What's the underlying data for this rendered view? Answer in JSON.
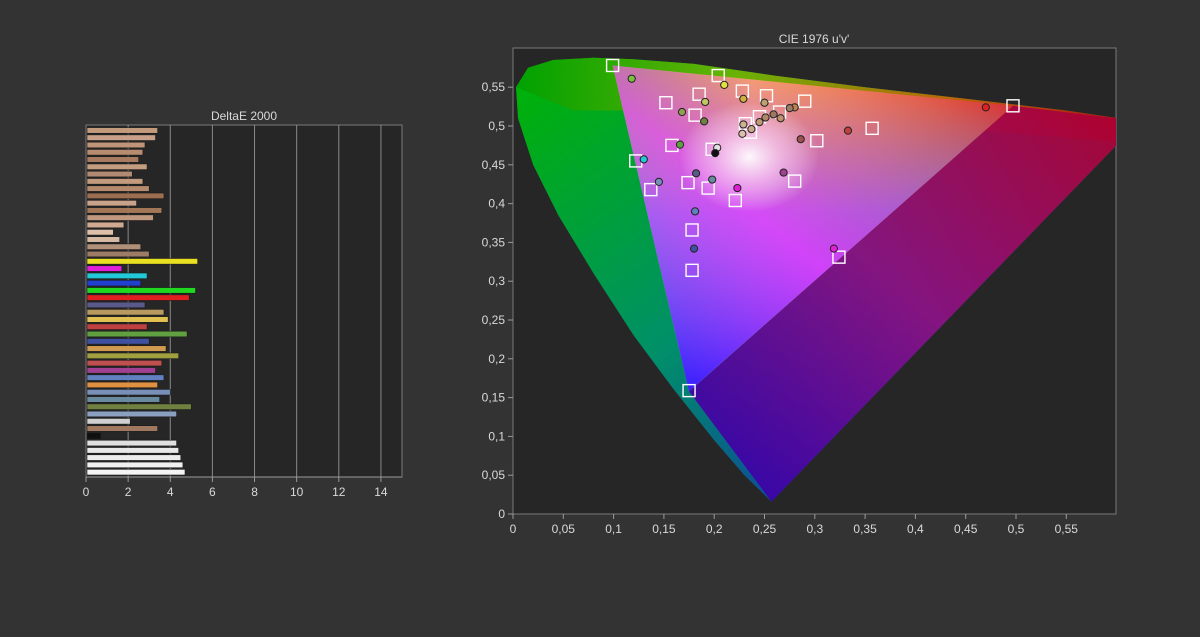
{
  "chart_data": [
    {
      "type": "bar",
      "orientation": "horizontal",
      "title": "DeltaE 2000",
      "xlim": [
        0,
        15
      ],
      "xticks": [
        "0",
        "2",
        "4",
        "6",
        "8",
        "10",
        "12",
        "14"
      ],
      "grid": true,
      "bars": [
        {
          "value": 3.4,
          "color": "#c49a7c"
        },
        {
          "value": 3.3,
          "color": "#c8a08a"
        },
        {
          "value": 2.8,
          "color": "#c09478"
        },
        {
          "value": 2.7,
          "color": "#b88c70"
        },
        {
          "value": 2.5,
          "color": "#a87a60"
        },
        {
          "value": 2.9,
          "color": "#c49c80"
        },
        {
          "value": 2.2,
          "color": "#b08a72"
        },
        {
          "value": 2.7,
          "color": "#c29a7e"
        },
        {
          "value": 3.0,
          "color": "#b48a6c"
        },
        {
          "value": 3.7,
          "color": "#9c6e50"
        },
        {
          "value": 2.4,
          "color": "#c8a28a"
        },
        {
          "value": 3.6,
          "color": "#a47658"
        },
        {
          "value": 3.2,
          "color": "#c09880"
        },
        {
          "value": 1.8,
          "color": "#d0aa90"
        },
        {
          "value": 1.3,
          "color": "#dcc0aa"
        },
        {
          "value": 1.6,
          "color": "#d4b8a2"
        },
        {
          "value": 2.6,
          "color": "#b09078"
        },
        {
          "value": 3.0,
          "color": "#9c7c66"
        },
        {
          "value": 5.3,
          "color": "#e8e020"
        },
        {
          "value": 1.7,
          "color": "#e020d8"
        },
        {
          "value": 2.9,
          "color": "#20c8d8"
        },
        {
          "value": 2.6,
          "color": "#2040d0"
        },
        {
          "value": 5.2,
          "color": "#20d820"
        },
        {
          "value": 4.9,
          "color": "#e02020"
        },
        {
          "value": 2.8,
          "color": "#5a5a8a"
        },
        {
          "value": 3.7,
          "color": "#b89a60"
        },
        {
          "value": 3.9,
          "color": "#e0c050"
        },
        {
          "value": 2.9,
          "color": "#c04040"
        },
        {
          "value": 4.8,
          "color": "#60a040"
        },
        {
          "value": 3.0,
          "color": "#4050a0"
        },
        {
          "value": 3.8,
          "color": "#d09a50"
        },
        {
          "value": 4.4,
          "color": "#a0a040"
        },
        {
          "value": 3.6,
          "color": "#c05050"
        },
        {
          "value": 3.3,
          "color": "#a04090"
        },
        {
          "value": 3.7,
          "color": "#6080c0"
        },
        {
          "value": 3.4,
          "color": "#e09040"
        },
        {
          "value": 4.0,
          "color": "#7890b8"
        },
        {
          "value": 3.5,
          "color": "#6a8aa0"
        },
        {
          "value": 5.0,
          "color": "#708040"
        },
        {
          "value": 4.3,
          "color": "#8aa0c0"
        },
        {
          "value": 2.1,
          "color": "#d0d0d0"
        },
        {
          "value": 3.4,
          "color": "#a07860"
        },
        {
          "value": 0.7,
          "color": "#101010"
        },
        {
          "value": 4.3,
          "color": "#e0e0e0"
        },
        {
          "value": 4.4,
          "color": "#e8e8e8"
        },
        {
          "value": 4.5,
          "color": "#ececec"
        },
        {
          "value": 4.6,
          "color": "#f0f0f0"
        },
        {
          "value": 4.7,
          "color": "#f4f4f4"
        }
      ]
    },
    {
      "type": "scatter",
      "title": "CIE 1976 u'v'",
      "xlim": [
        0,
        0.6
      ],
      "ylim": [
        0,
        0.6
      ],
      "xticks": [
        "0",
        "0,05",
        "0,1",
        "0,15",
        "0,2",
        "0,25",
        "0,3",
        "0,35",
        "0,4",
        "0,45",
        "0,5",
        "0,55"
      ],
      "yticks": [
        "0",
        "0,05",
        "0,1",
        "0,15",
        "0,2",
        "0,25",
        "0,3",
        "0,35",
        "0,4",
        "0,45",
        "0,5",
        "0,55"
      ],
      "gamut_primaries": [
        [
          0.175,
          0.158
        ],
        [
          0.099,
          0.578
        ],
        [
          0.497,
          0.526
        ]
      ],
      "white_point": [
        0.198,
        0.468
      ],
      "targets": [
        [
          0.099,
          0.578
        ],
        [
          0.204,
          0.565
        ],
        [
          0.152,
          0.53
        ],
        [
          0.185,
          0.541
        ],
        [
          0.228,
          0.545
        ],
        [
          0.252,
          0.539
        ],
        [
          0.29,
          0.532
        ],
        [
          0.181,
          0.514
        ],
        [
          0.265,
          0.518
        ],
        [
          0.245,
          0.512
        ],
        [
          0.231,
          0.503
        ],
        [
          0.236,
          0.492
        ],
        [
          0.357,
          0.497
        ],
        [
          0.302,
          0.481
        ],
        [
          0.158,
          0.475
        ],
        [
          0.122,
          0.455
        ],
        [
          0.198,
          0.47
        ],
        [
          0.174,
          0.427
        ],
        [
          0.194,
          0.42
        ],
        [
          0.28,
          0.429
        ],
        [
          0.137,
          0.418
        ],
        [
          0.221,
          0.404
        ],
        [
          0.178,
          0.366
        ],
        [
          0.324,
          0.331
        ],
        [
          0.178,
          0.314
        ],
        [
          0.175,
          0.159
        ],
        [
          0.497,
          0.526
        ]
      ],
      "measured": [
        {
          "u": 0.118,
          "v": 0.561,
          "c": "#7cc040"
        },
        {
          "u": 0.21,
          "v": 0.553,
          "c": "#e0e040"
        },
        {
          "u": 0.191,
          "v": 0.531,
          "c": "#c0c860"
        },
        {
          "u": 0.229,
          "v": 0.535,
          "c": "#d0b040"
        },
        {
          "u": 0.168,
          "v": 0.518,
          "c": "#90a050"
        },
        {
          "u": 0.25,
          "v": 0.53,
          "c": "#c0a070"
        },
        {
          "u": 0.28,
          "v": 0.524,
          "c": "#c08050"
        },
        {
          "u": 0.19,
          "v": 0.506,
          "c": "#708040"
        },
        {
          "u": 0.229,
          "v": 0.502,
          "c": "#d0b090"
        },
        {
          "u": 0.237,
          "v": 0.496,
          "c": "#c8a888"
        },
        {
          "u": 0.245,
          "v": 0.505,
          "c": "#c09878"
        },
        {
          "u": 0.251,
          "v": 0.511,
          "c": "#b08868"
        },
        {
          "u": 0.259,
          "v": 0.515,
          "c": "#a07860"
        },
        {
          "u": 0.266,
          "v": 0.51,
          "c": "#c09070"
        },
        {
          "u": 0.275,
          "v": 0.523,
          "c": "#9c7c66"
        },
        {
          "u": 0.228,
          "v": 0.49,
          "c": "#dcc0aa"
        },
        {
          "u": 0.333,
          "v": 0.494,
          "c": "#c04040"
        },
        {
          "u": 0.286,
          "v": 0.483,
          "c": "#a05050"
        },
        {
          "u": 0.166,
          "v": 0.476,
          "c": "#60a040"
        },
        {
          "u": 0.203,
          "v": 0.472,
          "c": "#e0e0e0"
        },
        {
          "u": 0.201,
          "v": 0.465,
          "c": "#101010"
        },
        {
          "u": 0.13,
          "v": 0.457,
          "c": "#20c8d8"
        },
        {
          "u": 0.182,
          "v": 0.439,
          "c": "#5a5a8a"
        },
        {
          "u": 0.198,
          "v": 0.431,
          "c": "#6a8aa0"
        },
        {
          "u": 0.145,
          "v": 0.428,
          "c": "#7890b8"
        },
        {
          "u": 0.269,
          "v": 0.44,
          "c": "#a04090"
        },
        {
          "u": 0.223,
          "v": 0.42,
          "c": "#e020d8"
        },
        {
          "u": 0.181,
          "v": 0.39,
          "c": "#6080c0"
        },
        {
          "u": 0.18,
          "v": 0.342,
          "c": "#4050a0"
        },
        {
          "u": 0.319,
          "v": 0.342,
          "c": "#e020d8"
        },
        {
          "u": 0.47,
          "v": 0.524,
          "c": "#e02020"
        }
      ]
    }
  ]
}
